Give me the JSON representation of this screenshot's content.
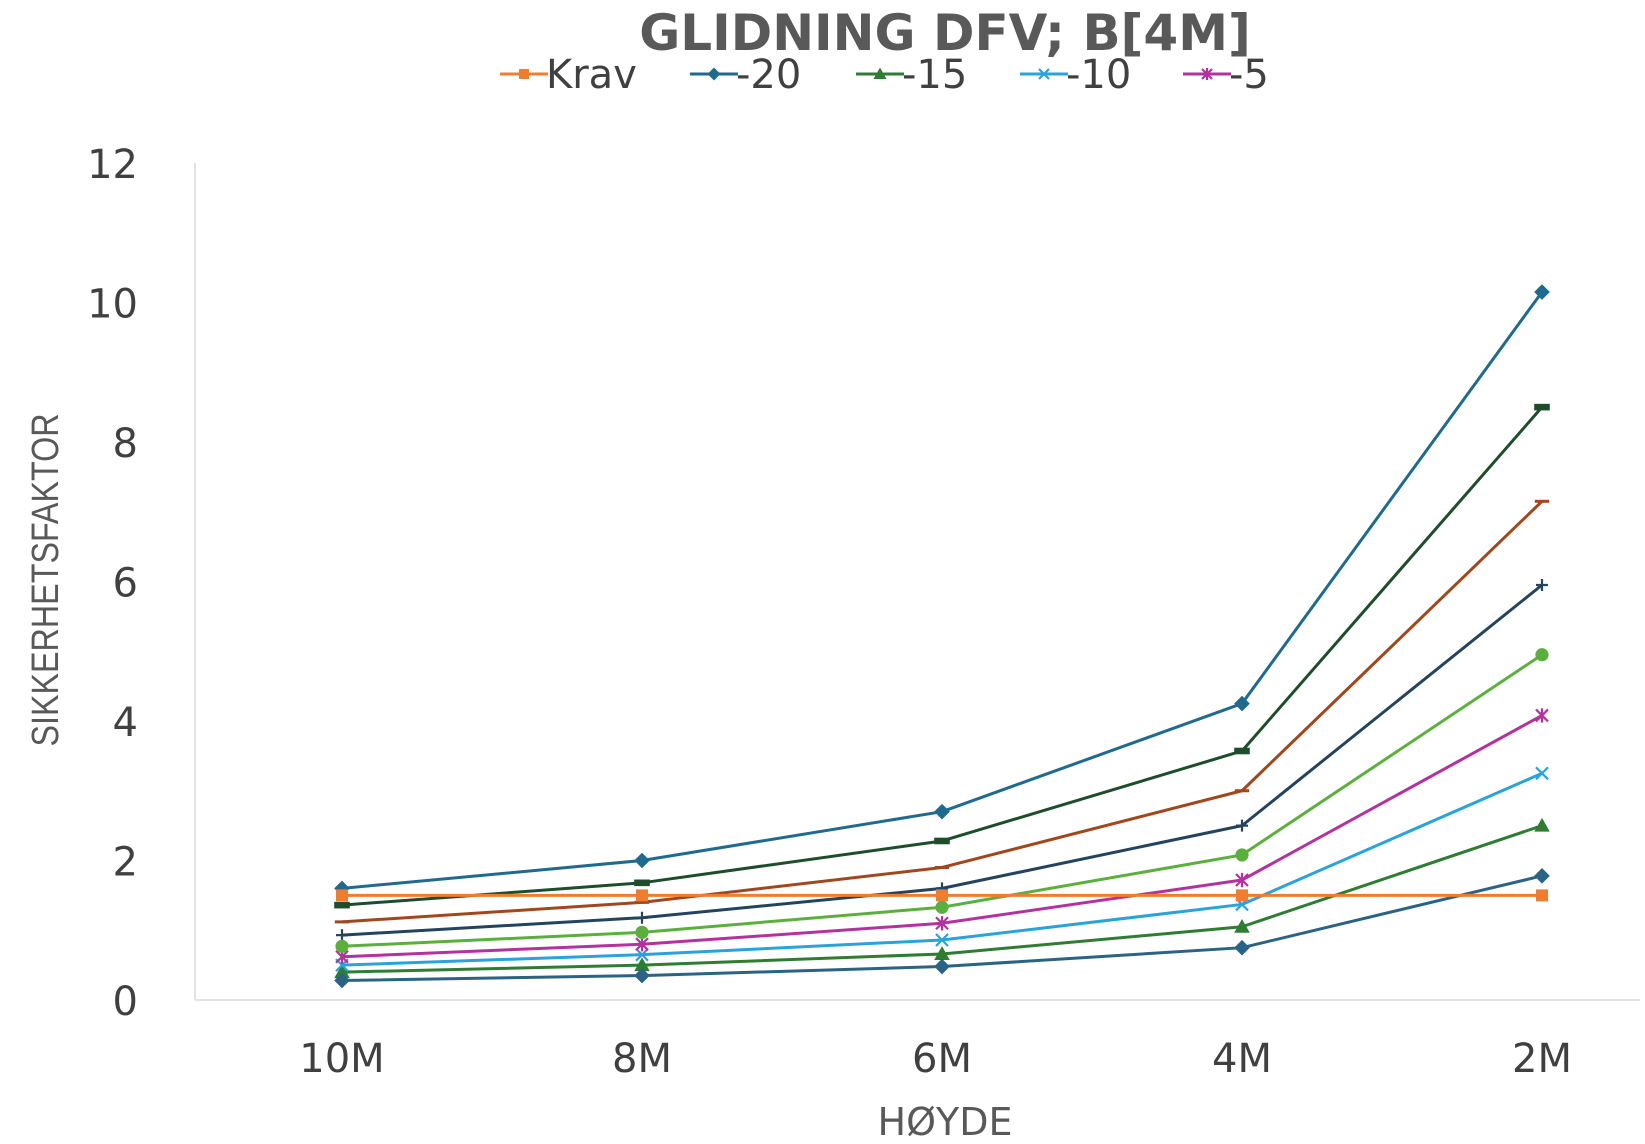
{
  "chart_data": {
    "type": "line",
    "title": "GLIDNING DFV; B[4M]",
    "xlabel": "HØYDE",
    "ylabel": "SIKKERHETSFAKTOR",
    "categories": [
      "10M",
      "8M",
      "6M",
      "4M",
      "2M"
    ],
    "yticks": [
      "0",
      "2",
      "4",
      "6",
      "8",
      "10",
      "12"
    ],
    "ylim": [
      0,
      12
    ],
    "grid": false,
    "legend_position": "top",
    "series": [
      {
        "name": "Krav",
        "color": "#ED7D31",
        "marker": "square",
        "in_legend": true,
        "values": [
          1.5,
          1.5,
          1.5,
          1.5,
          1.5
        ]
      },
      {
        "name": "-20",
        "color": "#1F6A8E",
        "marker": "diamond",
        "in_legend": true,
        "values": [
          1.6,
          2.0,
          2.7,
          4.25,
          10.15
        ]
      },
      {
        "name": "-15",
        "color": "#2E7D32",
        "marker": "triangle",
        "in_legend": true,
        "values": [
          0.4,
          0.5,
          0.66,
          1.05,
          2.5
        ]
      },
      {
        "name": "-10",
        "color": "#29A3D9",
        "marker": "x",
        "in_legend": true,
        "values": [
          0.5,
          0.65,
          0.86,
          1.37,
          3.25
        ]
      },
      {
        "name": "-5",
        "color": "#B3329E",
        "marker": "star",
        "in_legend": true,
        "values": [
          0.62,
          0.8,
          1.1,
          1.72,
          4.08
        ]
      },
      {
        "values": [
          1.36,
          1.68,
          2.28,
          3.57,
          8.5
        ],
        "color": "#1E4D2B",
        "marker": "dash",
        "in_legend": false
      },
      {
        "values": [
          1.12,
          1.4,
          1.9,
          3.0,
          7.15
        ],
        "color": "#A0471D",
        "marker": "line",
        "in_legend": false
      },
      {
        "values": [
          0.93,
          1.18,
          1.6,
          2.5,
          5.95
        ],
        "color": "#24435E",
        "marker": "plus",
        "in_legend": false
      },
      {
        "values": [
          0.77,
          0.97,
          1.33,
          2.08,
          4.95
        ],
        "color": "#5BAF3D",
        "marker": "circle",
        "in_legend": false
      },
      {
        "values": [
          0.28,
          0.35,
          0.48,
          0.75,
          1.78
        ],
        "color": "#2A6384",
        "marker": "diamond",
        "in_legend": false
      }
    ]
  }
}
